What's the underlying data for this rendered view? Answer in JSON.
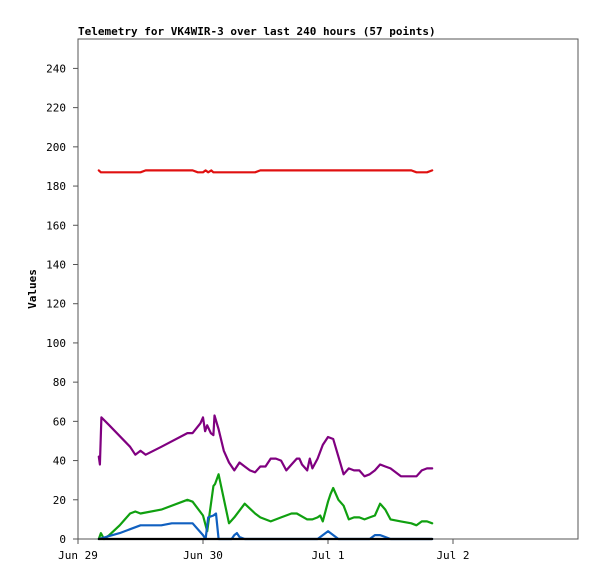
{
  "chart_data": {
    "type": "line",
    "title": "Telemetry for VK4WIR-3 over last 240 hours (57 points)",
    "xlabel": "",
    "ylabel": "Values",
    "ylim": [
      0,
      255
    ],
    "yticks": [
      0,
      20,
      40,
      60,
      80,
      100,
      120,
      140,
      160,
      180,
      200,
      220,
      240
    ],
    "xlim": [
      0,
      96
    ],
    "xticks": [
      {
        "t": 0,
        "label": "Jun 29"
      },
      {
        "t": 24,
        "label": "Jun 30"
      },
      {
        "t": 48,
        "label": "Jul 1"
      },
      {
        "t": 72,
        "label": "Jul 2"
      }
    ],
    "grid": false,
    "legend": "none",
    "series": [
      {
        "color": "#e01010",
        "x": [
          4.0,
          4.4,
          6.0,
          10.0,
          12.0,
          13.0,
          16.0,
          20.0,
          22.0,
          23.0,
          24.0,
          24.5,
          25.0,
          25.6,
          26.0,
          27.0,
          30.0,
          34.0,
          35.0,
          40.0,
          45.0,
          50.0,
          55.0,
          60.0,
          64.0,
          65.0,
          66.0,
          67.0,
          68.0
        ],
        "values": [
          188,
          187,
          187,
          187,
          187,
          188,
          188,
          188,
          188,
          187,
          187,
          188,
          187,
          188,
          187,
          187,
          187,
          187,
          188,
          188,
          188,
          188,
          188,
          188,
          188,
          187,
          187,
          187,
          188
        ]
      },
      {
        "color": "#800080",
        "x": [
          4.0,
          4.2,
          4.5,
          6.0,
          10.0,
          11.0,
          12.0,
          13.0,
          16.0,
          21.0,
          22.0,
          23.5,
          24.0,
          24.4,
          24.8,
          25.5,
          26.0,
          26.2,
          27.0,
          28.0,
          29.0,
          30.0,
          31.0,
          32.0,
          33.0,
          34.0,
          35.0,
          36.0,
          37.0,
          38.0,
          39.0,
          40.0,
          41.0,
          42.0,
          42.5,
          43.0,
          44.0,
          44.5,
          45.0,
          46.0,
          47.0,
          48.0,
          49.0,
          50.0,
          51.0,
          52.0,
          53.0,
          54.0,
          55.0,
          56.0,
          57.0,
          58.0,
          59.0,
          60.0,
          62.0,
          64.0,
          65.0,
          66.0,
          67.0,
          68.0
        ],
        "values": [
          42,
          38,
          62,
          58,
          47,
          43,
          45,
          43,
          47,
          54,
          54,
          59,
          62,
          55,
          58,
          54,
          53,
          63,
          56,
          45,
          39,
          35,
          39,
          37,
          35,
          34,
          37,
          37,
          41,
          41,
          40,
          35,
          38,
          41,
          41,
          38,
          35,
          41,
          36,
          41,
          48,
          52,
          51,
          42,
          33,
          36,
          35,
          35,
          32,
          33,
          35,
          38,
          37,
          36,
          32,
          32,
          32,
          35,
          36,
          36
        ]
      },
      {
        "color": "#10a010",
        "x": [
          4.0,
          4.4,
          5.0,
          6.0,
          8.0,
          9.0,
          10.0,
          11.0,
          12.0,
          16.0,
          21.0,
          22.0,
          24.0,
          24.8,
          26.0,
          26.3,
          27.0,
          29.0,
          30.0,
          32.0,
          34.0,
          35.0,
          37.0,
          39.0,
          41.0,
          42.0,
          44.0,
          45.0,
          46.0,
          46.5,
          47.0,
          48.0,
          48.5,
          49.0,
          50.0,
          51.0,
          52.0,
          53.0,
          54.0,
          55.0,
          56.0,
          57.0,
          58.0,
          59.0,
          60.0,
          62.0,
          64.0,
          65.0,
          66.0,
          67.0,
          68.0
        ],
        "values": [
          0,
          3,
          0,
          2,
          7,
          10,
          13,
          14,
          13,
          15,
          20,
          19,
          12,
          4,
          27,
          28,
          33,
          8,
          11,
          18,
          13,
          11,
          9,
          11,
          13,
          13,
          10,
          10,
          11,
          12,
          9,
          19,
          23,
          26,
          20,
          17,
          10,
          11,
          11,
          10,
          11,
          12,
          18,
          15,
          10,
          9,
          8,
          7,
          9,
          9,
          8
        ]
      },
      {
        "color": "#1060c0",
        "x": [
          4.0,
          8.0,
          10.0,
          12.0,
          16.0,
          18.0,
          20.0,
          22.0,
          24.0,
          24.5,
          25.0,
          26.0,
          26.5,
          27.0,
          29.5,
          30.0,
          30.5,
          31.0,
          32.0,
          36.0,
          40.0,
          44.0,
          46.0,
          47.0,
          48.0,
          48.5,
          50.0,
          56.0,
          57.0,
          58.0,
          59.0,
          60.0,
          64.0,
          68.0
        ],
        "values": [
          0,
          3,
          5,
          7,
          7,
          8,
          8,
          8,
          2,
          0,
          11,
          12,
          13,
          0,
          0,
          2,
          3,
          1,
          0,
          0,
          0,
          0,
          0,
          2,
          4,
          3,
          0,
          0,
          2,
          2,
          1,
          0,
          0,
          0
        ]
      },
      {
        "color": "#000000",
        "x": [
          4.0,
          68.0
        ],
        "values": [
          0,
          0
        ]
      }
    ]
  }
}
